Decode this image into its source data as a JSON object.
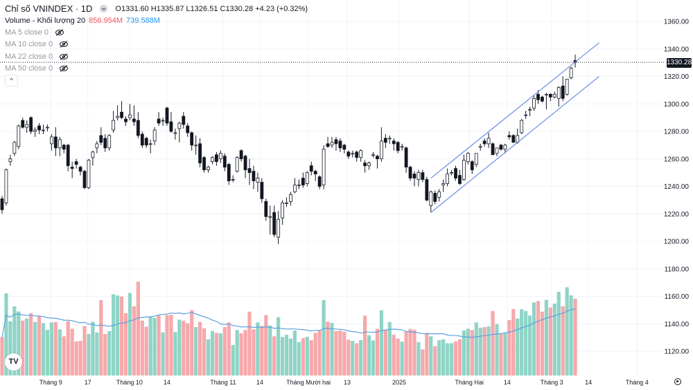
{
  "legend": {
    "symbol_title": "Chỉ số VNINDEX · 1D",
    "ohlc_text": "O1331.60 H1335.87 L1326.51 C1330.28 +4.23 (+0.32%)",
    "volume_label": "Volume - Khối lượng 20",
    "volume_value": "856.954M",
    "volume_ma_value": "739.588M",
    "ma_lines": [
      "MA 5 close 0",
      "MA 10 close 0",
      "MA 22 close 0",
      "MA 50 close 0"
    ],
    "hidden_icon": "eye-slash-icon",
    "collapse_icon": "chevron-up-icon"
  },
  "current_price_label": "1330.28",
  "logo_text": "TV",
  "colors": {
    "up_volume": "#8fd4c6",
    "down_volume": "#f7a8ab",
    "volume_ma": "#5aa0e0",
    "channel": "#6c8de6",
    "volume_value": "#f2545b",
    "volume_ma_value": "#2196f3"
  },
  "chart_data": {
    "type": "candlestick",
    "price_axis": {
      "ticks": [
        "1360.00",
        "1340.00",
        "1320.00",
        "1300.00",
        "1280.00",
        "1260.00",
        "1240.00",
        "1220.00",
        "1200.00",
        "1180.00",
        "1160.00",
        "1140.00",
        "1120.00"
      ],
      "range": [
        1120,
        1360
      ]
    },
    "time_axis": [
      {
        "label": "Tháng 9",
        "bar": 11.8
      },
      {
        "label": "17",
        "bar": 20.8
      },
      {
        "label": "Tháng 10",
        "bar": 30.9
      },
      {
        "label": "14",
        "bar": 40
      },
      {
        "label": "Tháng 11",
        "bar": 53.6
      },
      {
        "label": "14",
        "bar": 62.5
      },
      {
        "label": "Tháng Mười hai",
        "bar": 74.3
      },
      {
        "label": "13",
        "bar": 83.7
      },
      {
        "label": "2025",
        "bar": 96.3
      },
      {
        "label": "Tháng Hai",
        "bar": 113.3
      },
      {
        "label": "14",
        "bar": 122.5
      },
      {
        "label": "Tháng 3",
        "bar": 133.3
      },
      {
        "label": "14",
        "bar": 142.2
      },
      {
        "label": "Tháng 4",
        "bar": 154
      }
    ],
    "ohlc": [
      [
        1231,
        1233,
        1220,
        1223
      ],
      [
        1228,
        1253,
        1226,
        1252
      ],
      [
        1258,
        1263,
        1255,
        1260
      ],
      [
        1264,
        1273,
        1262,
        1272
      ],
      [
        1269,
        1285,
        1267,
        1284
      ],
      [
        1288,
        1290,
        1282,
        1283
      ],
      [
        1283,
        1288,
        1279,
        1285
      ],
      [
        1290,
        1291,
        1278,
        1280
      ],
      [
        1280,
        1283,
        1276,
        1281
      ],
      [
        1284,
        1286,
        1278,
        1281
      ],
      [
        1281,
        1285,
        1278,
        1281
      ],
      [
        1283,
        1285,
        1280,
        1283
      ],
      [
        1271,
        1278,
        1266,
        1276
      ],
      [
        1276,
        1283,
        1262,
        1268
      ],
      [
        1268,
        1276,
        1262,
        1274
      ],
      [
        1270,
        1271,
        1264,
        1267
      ],
      [
        1270,
        1271,
        1251,
        1255
      ],
      [
        1254,
        1258,
        1246,
        1253
      ],
      [
        1258,
        1260,
        1253,
        1256
      ],
      [
        1254,
        1255,
        1248,
        1251
      ],
      [
        1251,
        1252,
        1238,
        1239
      ],
      [
        1239,
        1260,
        1238,
        1259
      ],
      [
        1261,
        1266,
        1255,
        1265
      ],
      [
        1268,
        1273,
        1264,
        1271
      ],
      [
        1277,
        1283,
        1270,
        1272
      ],
      [
        1275,
        1278,
        1265,
        1268
      ],
      [
        1268,
        1278,
        1266,
        1277
      ],
      [
        1281,
        1295,
        1279,
        1288
      ],
      [
        1290,
        1299,
        1288,
        1291
      ],
      [
        1294,
        1302,
        1289,
        1290
      ],
      [
        1289,
        1291,
        1284,
        1287
      ],
      [
        1290,
        1300,
        1288,
        1292
      ],
      [
        1289,
        1299,
        1284,
        1287
      ],
      [
        1288,
        1294,
        1275,
        1277
      ],
      [
        1278,
        1280,
        1268,
        1270
      ],
      [
        1275,
        1276,
        1268,
        1270
      ],
      [
        1271,
        1274,
        1264,
        1271
      ],
      [
        1273,
        1283,
        1270,
        1281
      ],
      [
        1289,
        1294,
        1284,
        1286
      ],
      [
        1288,
        1290,
        1284,
        1288
      ],
      [
        1297,
        1298,
        1284,
        1286
      ],
      [
        1287,
        1294,
        1279,
        1280
      ],
      [
        1279,
        1282,
        1274,
        1279
      ],
      [
        1282,
        1287,
        1272,
        1286
      ],
      [
        1291,
        1294,
        1282,
        1285
      ],
      [
        1284,
        1286,
        1276,
        1279
      ],
      [
        1279,
        1280,
        1266,
        1270
      ],
      [
        1270,
        1277,
        1263,
        1270
      ],
      [
        1271,
        1275,
        1254,
        1257
      ],
      [
        1261,
        1262,
        1250,
        1252
      ],
      [
        1252,
        1255,
        1250,
        1254
      ],
      [
        1258,
        1262,
        1256,
        1261
      ],
      [
        1263,
        1265,
        1255,
        1258
      ],
      [
        1260,
        1266,
        1257,
        1264
      ],
      [
        1262,
        1264,
        1251,
        1254
      ],
      [
        1256,
        1257,
        1241,
        1244
      ],
      [
        1245,
        1248,
        1243,
        1245
      ],
      [
        1251,
        1262,
        1250,
        1261
      ],
      [
        1266,
        1267,
        1258,
        1260
      ],
      [
        1262,
        1263,
        1246,
        1252
      ],
      [
        1253,
        1260,
        1241,
        1250
      ],
      [
        1251,
        1255,
        1238,
        1244
      ],
      [
        1243,
        1250,
        1236,
        1246
      ],
      [
        1243,
        1246,
        1228,
        1231
      ],
      [
        1229,
        1231,
        1215,
        1218
      ],
      [
        1218,
        1226,
        1205,
        1218
      ],
      [
        1221,
        1226,
        1203,
        1205
      ],
      [
        1203,
        1222,
        1198,
        1216
      ],
      [
        1217,
        1230,
        1212,
        1228
      ],
      [
        1228,
        1232,
        1225,
        1228
      ],
      [
        1229,
        1236,
        1226,
        1234
      ],
      [
        1236,
        1246,
        1235,
        1241
      ],
      [
        1241,
        1245,
        1238,
        1241
      ],
      [
        1246,
        1250,
        1239,
        1241
      ],
      [
        1242,
        1251,
        1240,
        1250
      ],
      [
        1255,
        1258,
        1248,
        1251
      ],
      [
        1251,
        1252,
        1244,
        1249
      ],
      [
        1247,
        1248,
        1238,
        1240
      ],
      [
        1241,
        1270,
        1238,
        1267
      ],
      [
        1271,
        1276,
        1268,
        1269
      ],
      [
        1270,
        1276,
        1268,
        1272
      ],
      [
        1274,
        1276,
        1266,
        1271
      ],
      [
        1273,
        1275,
        1265,
        1268
      ],
      [
        1270,
        1271,
        1264,
        1267
      ],
      [
        1265,
        1266,
        1260,
        1262
      ],
      [
        1264,
        1266,
        1261,
        1264
      ],
      [
        1265,
        1266,
        1258,
        1261
      ],
      [
        1261,
        1267,
        1258,
        1266
      ],
      [
        1257,
        1259,
        1250,
        1255
      ],
      [
        1255,
        1258,
        1252,
        1257
      ],
      [
        1263,
        1265,
        1261,
        1263
      ],
      [
        1262,
        1263,
        1253,
        1260
      ],
      [
        1260,
        1283,
        1258,
        1273
      ],
      [
        1275,
        1278,
        1268,
        1272
      ],
      [
        1275,
        1277,
        1271,
        1275
      ],
      [
        1273,
        1275,
        1266,
        1271
      ],
      [
        1272,
        1273,
        1264,
        1266
      ],
      [
        1269,
        1271,
        1266,
        1269
      ],
      [
        1268,
        1269,
        1250,
        1254
      ],
      [
        1254,
        1255,
        1244,
        1246
      ],
      [
        1249,
        1251,
        1240,
        1246
      ],
      [
        1245,
        1252,
        1240,
        1250
      ],
      [
        1250,
        1252,
        1243,
        1245
      ],
      [
        1245,
        1247,
        1229,
        1230
      ],
      [
        1226,
        1237,
        1221,
        1236
      ],
      [
        1235,
        1237,
        1227,
        1229
      ],
      [
        1232,
        1238,
        1229,
        1236
      ],
      [
        1241,
        1245,
        1236,
        1242
      ],
      [
        1242,
        1253,
        1240,
        1249
      ],
      [
        1250,
        1252,
        1248,
        1250
      ],
      [
        1253,
        1255,
        1244,
        1246
      ],
      [
        1248,
        1252,
        1241,
        1242
      ],
      [
        1245,
        1263,
        1244,
        1259
      ],
      [
        1258,
        1265,
        1256,
        1264
      ],
      [
        1258,
        1259,
        1249,
        1252
      ],
      [
        1256,
        1264,
        1254,
        1264
      ],
      [
        1269,
        1271,
        1266,
        1269
      ],
      [
        1273,
        1275,
        1269,
        1271
      ],
      [
        1271,
        1279,
        1268,
        1275
      ],
      [
        1271,
        1272,
        1263,
        1263
      ],
      [
        1264,
        1268,
        1262,
        1268
      ],
      [
        1270,
        1271,
        1266,
        1267
      ],
      [
        1267,
        1271,
        1264,
        1270
      ],
      [
        1277,
        1280,
        1274,
        1276
      ],
      [
        1277,
        1278,
        1272,
        1272
      ],
      [
        1272,
        1282,
        1271,
        1277
      ],
      [
        1279,
        1289,
        1278,
        1288
      ],
      [
        1292,
        1295,
        1289,
        1292
      ],
      [
        1296,
        1298,
        1291,
        1296
      ],
      [
        1297,
        1306,
        1295,
        1304
      ],
      [
        1307,
        1310,
        1300,
        1303
      ],
      [
        1305,
        1306,
        1301,
        1302
      ],
      [
        1307,
        1308,
        1296,
        1307
      ],
      [
        1307,
        1308,
        1302,
        1305
      ],
      [
        1305,
        1309,
        1304,
        1307
      ],
      [
        1304,
        1313,
        1298,
        1312
      ],
      [
        1313,
        1320,
        1302,
        1304
      ],
      [
        1307,
        1318,
        1306,
        1318
      ],
      [
        1319,
        1327,
        1318,
        1326
      ],
      [
        1331.6,
        1335.87,
        1326.51,
        1330.28
      ]
    ],
    "volume_millions": [
      430,
      918,
      605,
      772,
      715,
      612,
      636,
      695,
      597,
      661,
      584,
      509,
      592,
      597,
      515,
      437,
      605,
      522,
      381,
      386,
      553,
      463,
      600,
      481,
      841,
      463,
      494,
      906,
      893,
      880,
      695,
      921,
      772,
      1047,
      612,
      545,
      656,
      643,
      669,
      481,
      674,
      677,
      484,
      623,
      612,
      584,
      728,
      540,
      597,
      527,
      404,
      497,
      476,
      471,
      540,
      592,
      340,
      507,
      471,
      507,
      713,
      515,
      592,
      553,
      674,
      558,
      437,
      651,
      430,
      455,
      412,
      502,
      373,
      417,
      432,
      394,
      476,
      502,
      841,
      600,
      587,
      497,
      502,
      489,
      399,
      386,
      360,
      394,
      669,
      450,
      391,
      522,
      728,
      509,
      597,
      455,
      412,
      378,
      489,
      520,
      509,
      373,
      291,
      476,
      437,
      327,
      394,
      404,
      360,
      360,
      381,
      404,
      502,
      522,
      507,
      592,
      533,
      540,
      548,
      720,
      574,
      463,
      471,
      618,
      741,
      636,
      741,
      720,
      669,
      816,
      831,
      713,
      844,
      759,
      803,
      934,
      772,
      985,
      895,
      856.954
    ],
    "volume_ma_period": 20,
    "trend_channel": {
      "upper": [
        {
          "bar": 104,
          "price": 1246
        },
        {
          "bar": 144.8,
          "price": 1344.5
        }
      ],
      "lower": [
        {
          "bar": 104,
          "price": 1221
        },
        {
          "bar": 144.8,
          "price": 1320
        }
      ]
    },
    "last_price": 1330.28,
    "grid": true
  }
}
